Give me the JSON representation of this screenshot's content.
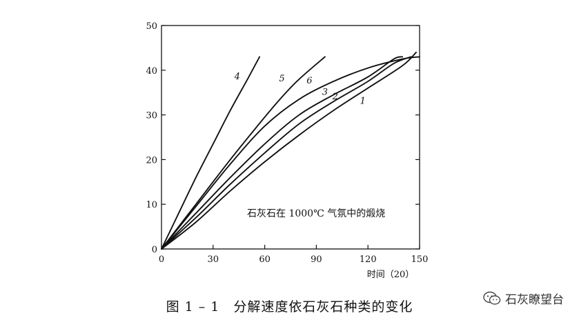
{
  "chart_data": {
    "type": "line",
    "title": "",
    "xlabel": "时间（20）",
    "ylabel": "",
    "xlim": [
      0,
      150
    ],
    "ylim": [
      0,
      50
    ],
    "x_ticks": [
      "0",
      "30",
      "60",
      "90",
      "120",
      "150"
    ],
    "y_ticks": [
      "0",
      "10",
      "20",
      "30",
      "40",
      "50"
    ],
    "grid": false,
    "legend": "none",
    "annotation": "石灰石在 1000℃ 气氛中的煅烧",
    "series": [
      {
        "name": "1",
        "points": [
          [
            0,
            0
          ],
          [
            20,
            6
          ],
          [
            40,
            13
          ],
          [
            60,
            19.5
          ],
          [
            80,
            25.5
          ],
          [
            100,
            31
          ],
          [
            120,
            36
          ],
          [
            140,
            41
          ],
          [
            148,
            44
          ]
        ]
      },
      {
        "name": "2",
        "points": [
          [
            0,
            0
          ],
          [
            20,
            7
          ],
          [
            40,
            14.5
          ],
          [
            60,
            21.5
          ],
          [
            80,
            28
          ],
          [
            100,
            33
          ],
          [
            120,
            37.5
          ],
          [
            135,
            41.5
          ],
          [
            145,
            43
          ]
        ]
      },
      {
        "name": "3",
        "points": [
          [
            0,
            0
          ],
          [
            20,
            8
          ],
          [
            40,
            16
          ],
          [
            60,
            23.5
          ],
          [
            80,
            30
          ],
          [
            100,
            34.5
          ],
          [
            120,
            38.5
          ],
          [
            135,
            42.5
          ],
          [
            140,
            43
          ]
        ]
      },
      {
        "name": "6",
        "points": [
          [
            0,
            0
          ],
          [
            20,
            9.5
          ],
          [
            40,
            19
          ],
          [
            60,
            27.5
          ],
          [
            80,
            33.5
          ],
          [
            100,
            37.5
          ],
          [
            120,
            40.5
          ],
          [
            140,
            42.5
          ],
          [
            150,
            43
          ]
        ]
      },
      {
        "name": "5",
        "points": [
          [
            0,
            0
          ],
          [
            20,
            10
          ],
          [
            40,
            20
          ],
          [
            60,
            29.5
          ],
          [
            70,
            34
          ],
          [
            80,
            38
          ],
          [
            95,
            43
          ]
        ]
      },
      {
        "name": "4",
        "points": [
          [
            0,
            0
          ],
          [
            10,
            8
          ],
          [
            20,
            16
          ],
          [
            30,
            23.5
          ],
          [
            40,
            31
          ],
          [
            50,
            38
          ],
          [
            57,
            43
          ]
        ]
      }
    ]
  },
  "caption": "图 1 – 1　分解速度依石灰石种类的变化",
  "brand": {
    "label": "石灰瞭望台",
    "icon": "wechat-icon"
  }
}
